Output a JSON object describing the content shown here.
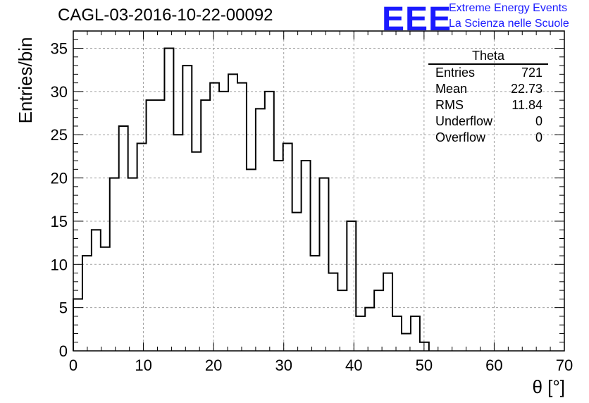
{
  "header": {
    "title": "CAGL-03-2016-10-22-00092",
    "logo_text": "EEE",
    "logo_line1": "Extreme Energy Events",
    "logo_line2": "La Scienza nelle Scuole"
  },
  "stats": {
    "title": "Theta",
    "rows": [
      {
        "label": "Entries",
        "value": "721"
      },
      {
        "label": "Mean",
        "value": "22.73"
      },
      {
        "label": "RMS",
        "value": "11.84"
      },
      {
        "label": "Underflow",
        "value": "0"
      },
      {
        "label": "Overflow",
        "value": "0"
      }
    ]
  },
  "chart_data": {
    "type": "bar",
    "histogram": true,
    "title": "CAGL-03-2016-10-22-00092",
    "xlabel": "θ [°]",
    "ylabel": "Entries/bin",
    "xlim": [
      0,
      70
    ],
    "ylim": [
      0,
      37
    ],
    "xticks": [
      0,
      10,
      20,
      30,
      40,
      50,
      60,
      70
    ],
    "yticks": [
      0,
      5,
      10,
      15,
      20,
      25,
      30,
      35
    ],
    "bin_width": 1.3,
    "bin_start": 0,
    "values": [
      6,
      11,
      14,
      12,
      20,
      26,
      20,
      24,
      29,
      29,
      35,
      25,
      33,
      23,
      29,
      31,
      30,
      32,
      31,
      21,
      28,
      30,
      22,
      24,
      16,
      22,
      11,
      20,
      9,
      7,
      15,
      4,
      5,
      7,
      9,
      4,
      2,
      4,
      1
    ],
    "grid": true,
    "line_color": "#000000",
    "grid_color": "#a0a0a0"
  }
}
